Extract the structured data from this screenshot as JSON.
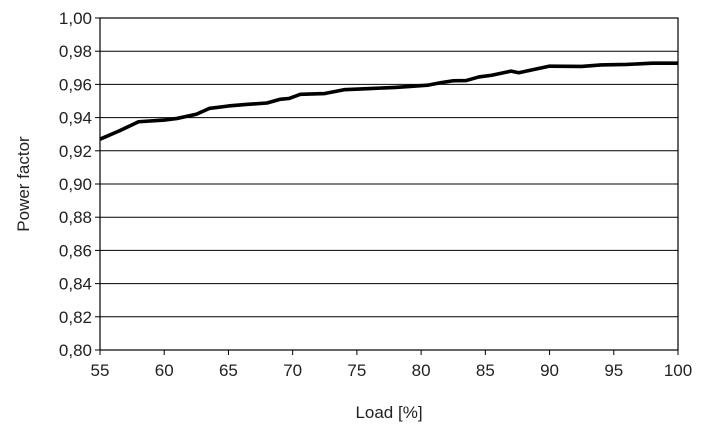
{
  "chart_data": {
    "type": "line",
    "title": "",
    "xlabel": "Load [%]",
    "ylabel": "Power factor",
    "xlim": [
      55,
      100
    ],
    "ylim": [
      0.8,
      1.0
    ],
    "x_ticks": [
      "55",
      "60",
      "65",
      "70",
      "75",
      "80",
      "85",
      "90",
      "95",
      "100"
    ],
    "y_ticks": [
      "0,80",
      "0,82",
      "0,84",
      "0,86",
      "0,88",
      "0,90",
      "0,92",
      "0,94",
      "0,96",
      "0,98",
      "1,00"
    ],
    "grid": "horizontal",
    "line_color": "#000000",
    "series": [
      {
        "x": [
          55,
          56.5,
          58,
          60,
          61,
          62.5,
          63.5,
          65,
          66.5,
          68,
          69,
          69.7,
          70.6,
          72.5,
          74,
          76,
          78,
          79,
          80.5,
          81.5,
          82.5,
          83.5,
          84.5,
          85.5,
          87,
          87.6,
          88.5,
          90,
          92.5,
          94,
          96,
          98,
          100
        ],
        "y": [
          0.927,
          0.932,
          0.9375,
          0.9385,
          0.9395,
          0.942,
          0.9455,
          0.947,
          0.948,
          0.9488,
          0.951,
          0.9515,
          0.954,
          0.9545,
          0.9568,
          0.9575,
          0.9582,
          0.9587,
          0.9595,
          0.961,
          0.9622,
          0.9623,
          0.9645,
          0.9655,
          0.968,
          0.967,
          0.9685,
          0.971,
          0.9708,
          0.9717,
          0.972,
          0.9728,
          0.9728
        ]
      }
    ]
  }
}
